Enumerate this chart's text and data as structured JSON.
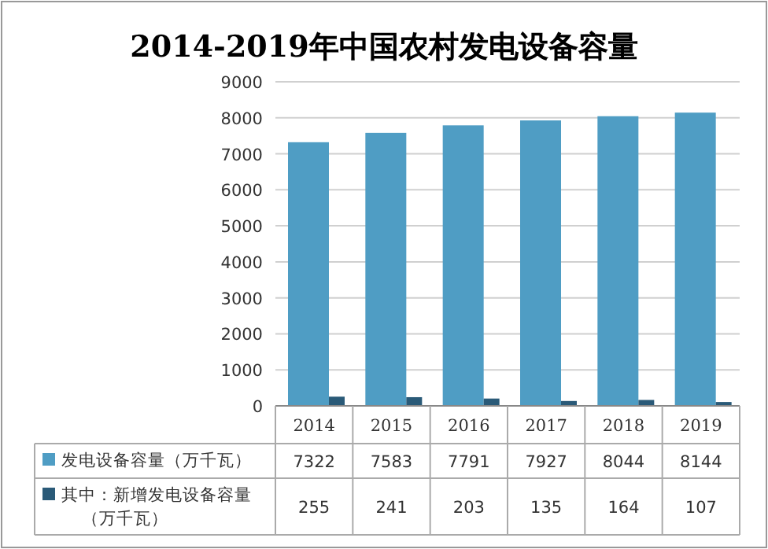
{
  "chart_data": {
    "type": "bar",
    "title": "2014-2019年中国农村发电设备容量",
    "categories": [
      "2014",
      "2015",
      "2016",
      "2017",
      "2018",
      "2019"
    ],
    "series": [
      {
        "name": "发电设备容量（万千瓦）",
        "color": "#4f9dc4",
        "values": [
          7322,
          7583,
          7791,
          7927,
          8044,
          8144
        ]
      },
      {
        "name": "其中：新增发电设备容量（万千瓦）",
        "color": "#2a5a78",
        "values": [
          255,
          241,
          203,
          135,
          164,
          107
        ]
      }
    ],
    "ylim": [
      0,
      9000
    ],
    "yticks": [
      0,
      1000,
      2000,
      3000,
      4000,
      5000,
      6000,
      7000,
      8000,
      9000
    ],
    "grid": "y",
    "legend": "bottom",
    "data_labels": true
  }
}
